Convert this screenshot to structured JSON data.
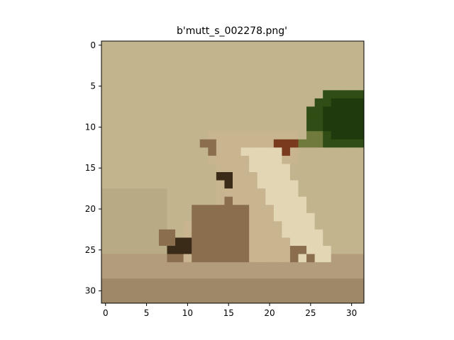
{
  "title": "b'mutt_s_002278.png'",
  "image": {
    "width": 32,
    "height": 32,
    "description": "low-resolution pixelated photo of a small dog",
    "palette": {
      "background_wall": "#C2B48C",
      "wall_shadow": "#B8AA84",
      "floor_light": "#B29C7C",
      "floor_dark": "#9E8868",
      "plant_dark": "#1F3A0C",
      "plant_mid": "#2F4D14",
      "plant_edge": "#6F7A3C",
      "dog_light": "#E2D6B4",
      "dog_mid": "#C8B48E",
      "dog_brown": "#8A6E4E",
      "dog_dark": "#3A2A18",
      "dog_reddish": "#7A3A1E"
    }
  },
  "axes": {
    "xlim": [
      -0.5,
      31.5
    ],
    "ylim": [
      31.5,
      -0.5
    ],
    "x_ticks": [
      0,
      5,
      10,
      15,
      20,
      25,
      30
    ],
    "y_ticks": [
      0,
      5,
      10,
      15,
      20,
      25,
      30
    ]
  }
}
